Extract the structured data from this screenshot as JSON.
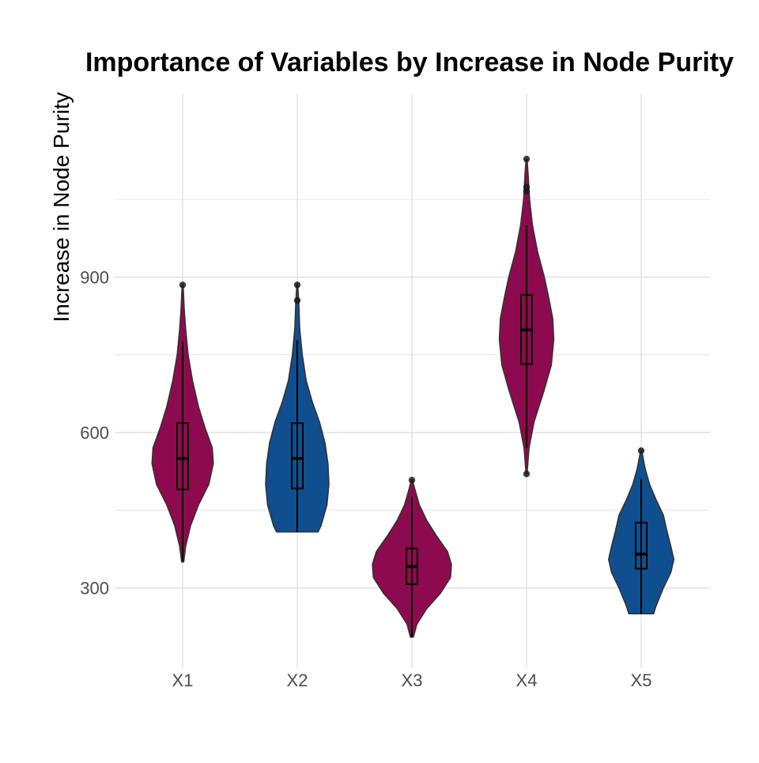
{
  "chart_data": {
    "type": "violin",
    "title": "Importance of Variables by Increase in Node Purity",
    "xlabel": "",
    "ylabel": "Increase in Node Purity",
    "ylim": [
      145,
      1255
    ],
    "y_ticks": [
      300,
      600,
      900
    ],
    "y_minor_ticks": [
      450,
      750,
      1050
    ],
    "grid": true,
    "legend": "none",
    "categories": [
      "X1",
      "X2",
      "X3",
      "X4",
      "X5"
    ],
    "colors": {
      "crimson": "#8e0a4e",
      "blue": "#0f4f8f"
    },
    "series": [
      {
        "category": "X1",
        "color": "#8e0a4e",
        "min": 350,
        "max": 885,
        "q1": 490,
        "median": 550,
        "q3": 618,
        "whisker_low": 352,
        "whisker_high": 775,
        "outliers": [
          885
        ],
        "density": [
          [
            350,
            0.02
          ],
          [
            380,
            0.06
          ],
          [
            420,
            0.16
          ],
          [
            460,
            0.32
          ],
          [
            500,
            0.53
          ],
          [
            540,
            0.62
          ],
          [
            570,
            0.6
          ],
          [
            610,
            0.45
          ],
          [
            650,
            0.32
          ],
          [
            700,
            0.2
          ],
          [
            750,
            0.11
          ],
          [
            800,
            0.06
          ],
          [
            840,
            0.03
          ],
          [
            885,
            0.01
          ]
        ]
      },
      {
        "category": "X2",
        "color": "#0f4f8f",
        "min": 408,
        "max": 885,
        "q1": 492,
        "median": 550,
        "q3": 618,
        "whisker_low": 408,
        "whisker_high": 778,
        "outliers": [
          885,
          855
        ],
        "density": [
          [
            408,
            0.42
          ],
          [
            420,
            0.48
          ],
          [
            460,
            0.6
          ],
          [
            500,
            0.64
          ],
          [
            540,
            0.62
          ],
          [
            580,
            0.56
          ],
          [
            620,
            0.45
          ],
          [
            660,
            0.3
          ],
          [
            700,
            0.18
          ],
          [
            750,
            0.1
          ],
          [
            800,
            0.05
          ],
          [
            850,
            0.03
          ],
          [
            885,
            0.01
          ]
        ]
      },
      {
        "category": "X3",
        "color": "#8e0a4e",
        "min": 205,
        "max": 508,
        "q1": 307,
        "median": 341,
        "q3": 376,
        "whisker_low": 205,
        "whisker_high": 475,
        "outliers": [
          508
        ],
        "density": [
          [
            205,
            0.03
          ],
          [
            230,
            0.1
          ],
          [
            260,
            0.3
          ],
          [
            290,
            0.58
          ],
          [
            320,
            0.78
          ],
          [
            345,
            0.8
          ],
          [
            370,
            0.72
          ],
          [
            400,
            0.5
          ],
          [
            430,
            0.3
          ],
          [
            460,
            0.15
          ],
          [
            490,
            0.06
          ],
          [
            508,
            0.01
          ]
        ]
      },
      {
        "category": "X4",
        "color": "#8e0a4e",
        "min": 520,
        "max": 1128,
        "q1": 732,
        "median": 798,
        "q3": 866,
        "whisker_low": 570,
        "whisker_high": 1000,
        "outliers": [
          520,
          1066,
          1074,
          1128
        ],
        "density": [
          [
            520,
            0.01
          ],
          [
            570,
            0.05
          ],
          [
            620,
            0.15
          ],
          [
            680,
            0.35
          ],
          [
            730,
            0.5
          ],
          [
            780,
            0.55
          ],
          [
            820,
            0.53
          ],
          [
            860,
            0.45
          ],
          [
            900,
            0.36
          ],
          [
            950,
            0.22
          ],
          [
            1000,
            0.12
          ],
          [
            1050,
            0.06
          ],
          [
            1100,
            0.03
          ],
          [
            1128,
            0.01
          ]
        ]
      },
      {
        "category": "X5",
        "color": "#0f4f8f",
        "min": 250,
        "max": 565,
        "q1": 337,
        "median": 365,
        "q3": 426,
        "whisker_low": 250,
        "whisker_high": 510,
        "outliers": [
          565
        ],
        "density": [
          [
            250,
            0.25
          ],
          [
            265,
            0.3
          ],
          [
            300,
            0.45
          ],
          [
            330,
            0.6
          ],
          [
            355,
            0.66
          ],
          [
            380,
            0.6
          ],
          [
            410,
            0.52
          ],
          [
            440,
            0.45
          ],
          [
            470,
            0.3
          ],
          [
            500,
            0.17
          ],
          [
            530,
            0.08
          ],
          [
            565,
            0.01
          ]
        ]
      }
    ]
  }
}
